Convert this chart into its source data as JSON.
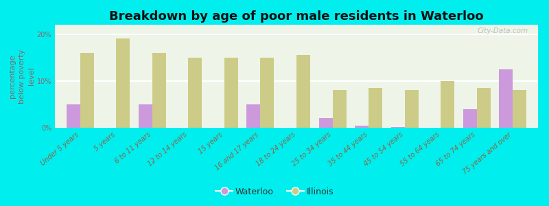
{
  "title": "Breakdown by age of poor male residents in Waterloo",
  "ylabel": "percentage\nbelow poverty\nlevel",
  "categories": [
    "Under 5 years",
    "5 years",
    "6 to 11 years",
    "12 to 14 years",
    "15 years",
    "16 and 17 years",
    "18 to 24 years",
    "25 to 34 years",
    "35 to 44 years",
    "45 to 54 years",
    "55 to 64 years",
    "65 to 74 years",
    "75 years and over"
  ],
  "waterloo": [
    5.0,
    0.0,
    5.0,
    0.0,
    0.0,
    5.0,
    0.0,
    2.0,
    0.5,
    0.2,
    0.0,
    4.0,
    12.5
  ],
  "illinois": [
    16.0,
    19.0,
    16.0,
    15.0,
    15.0,
    15.0,
    15.5,
    8.0,
    8.5,
    8.0,
    10.0,
    8.5,
    8.0
  ],
  "waterloo_color": "#cc99dd",
  "illinois_color": "#cccc88",
  "background_color": "#00eeee",
  "plot_bg_color": "#eef5e8",
  "ylim": [
    0,
    22
  ],
  "yticks": [
    0,
    10,
    20
  ],
  "ytick_labels": [
    "0%",
    "10%",
    "20%"
  ],
  "watermark": "City-Data.com",
  "title_fontsize": 13,
  "axis_label_fontsize": 8,
  "tick_fontsize": 7,
  "legend_fontsize": 9,
  "bar_width": 0.38
}
